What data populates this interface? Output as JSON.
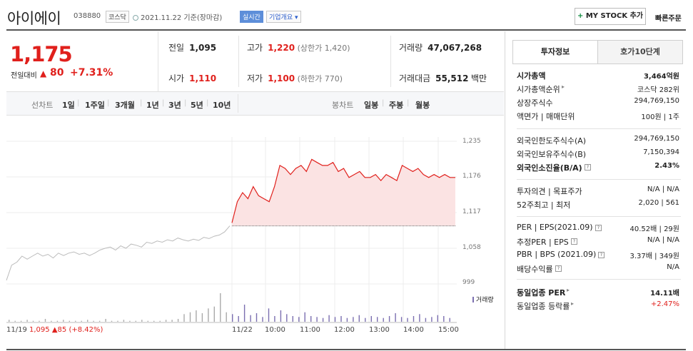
{
  "header": {
    "name": "아이에이",
    "code": "038880",
    "market": "코스닥",
    "base_date": "2021.11.22 기준(장마감)",
    "realtime": "실시간",
    "company_overview": "기업개요",
    "mystock_plus": "+",
    "mystock": "MY STOCK 추가",
    "quick_order": "빠른주문"
  },
  "price": {
    "current": "1,175",
    "change_label": "전일대비",
    "change_arrow": "▲",
    "change": "80",
    "change_pct": "+7.31%"
  },
  "quote": {
    "prev_close": {
      "label": "전일",
      "value": "1,095"
    },
    "high": {
      "label": "고가",
      "value": "1,220",
      "sub": "(상한가 1,420)"
    },
    "volume": {
      "label": "거래량",
      "value": "47,067,268"
    },
    "open": {
      "label": "시가",
      "value": "1,110"
    },
    "low": {
      "label": "저가",
      "value": "1,100",
      "sub": "(하한가 770)"
    },
    "amount": {
      "label": "거래대금",
      "value": "55,512",
      "unit": "백만"
    }
  },
  "period_tabs": {
    "line_label": "선차트",
    "items": [
      "1일",
      "1주일",
      "3개월",
      "1년",
      "3년",
      "5년",
      "10년"
    ],
    "candle_label": "봉차트",
    "candle_items": [
      "일봉",
      "주봉",
      "월봉"
    ]
  },
  "chart": {
    "prev_day_label": "11/19",
    "prev_day_price": "1,095",
    "prev_day_arrow": "▲",
    "prev_day_change": "85",
    "prev_day_pct": "(+8.42%)",
    "volume_legend": "거래량"
  },
  "chart_data": {
    "type": "line",
    "y_ticks": [
      "1,235",
      "1,176",
      "1,117",
      "1,058",
      "999"
    ],
    "ylim": [
      999,
      1235
    ],
    "x_ticks": [
      "11/22",
      "10:00",
      "11:00",
      "12:00",
      "13:00",
      "14:00",
      "15:00"
    ],
    "baseline": 1095,
    "series": [
      {
        "x": [
          "09:00",
          "09:05",
          "09:10",
          "09:15",
          "09:20",
          "09:25",
          "09:30",
          "09:40",
          "09:50",
          "10:00",
          "10:10",
          "10:20",
          "10:30",
          "10:40",
          "10:50",
          "11:00",
          "11:10",
          "11:20",
          "11:30",
          "11:40",
          "11:50",
          "12:00",
          "12:10",
          "12:20",
          "12:30",
          "12:40",
          "12:50",
          "13:00",
          "13:10",
          "13:20",
          "13:30",
          "13:40",
          "13:50",
          "14:00",
          "14:10",
          "14:20",
          "14:30",
          "14:40",
          "14:50",
          "15:00",
          "15:10",
          "15:20",
          "15:30"
        ],
        "values": [
          1100,
          1135,
          1150,
          1140,
          1160,
          1145,
          1140,
          1135,
          1160,
          1195,
          1190,
          1180,
          1190,
          1195,
          1185,
          1205,
          1200,
          1195,
          1195,
          1200,
          1185,
          1190,
          1175,
          1180,
          1185,
          1175,
          1175,
          1180,
          1170,
          1180,
          1175,
          1170,
          1195,
          1190,
          1185,
          1190,
          1180,
          1175,
          1180,
          1175,
          1180,
          1175,
          1175
        ]
      }
    ],
    "prev_day_values": [
      1005,
      1030,
      1035,
      1045,
      1040,
      1045,
      1050,
      1045,
      1048,
      1042,
      1050,
      1046,
      1050,
      1052,
      1048,
      1050,
      1046,
      1050,
      1055,
      1058,
      1060,
      1055,
      1062,
      1058,
      1065,
      1063,
      1060,
      1068,
      1066,
      1070,
      1068,
      1072,
      1070,
      1075,
      1072,
      1070,
      1073,
      1071,
      1076,
      1074,
      1078,
      1080,
      1085,
      1095
    ],
    "volume": [
      2,
      1,
      1,
      2,
      1,
      1,
      3,
      1,
      1,
      2,
      1,
      1,
      1,
      2,
      1,
      1,
      3,
      1,
      1,
      2,
      1,
      1,
      2,
      1,
      1,
      1,
      2,
      2,
      3,
      8,
      10,
      12,
      9,
      14,
      16,
      30,
      10,
      8,
      6,
      18,
      7,
      9,
      5,
      14,
      6,
      12,
      8,
      6,
      5,
      10,
      6,
      5,
      4,
      7,
      5,
      6,
      4,
      5,
      7,
      4,
      6,
      5,
      4,
      6,
      9,
      5,
      4,
      6,
      8,
      4,
      5,
      7,
      6,
      4
    ]
  },
  "right_panel": {
    "tab_invest": "투자정보",
    "tab_orderbook": "호가10단계",
    "rows1": [
      {
        "k": "시가총액",
        "v": "3,464억원"
      },
      {
        "k": "시가총액순위",
        "v": "코스닥 282위"
      },
      {
        "k": "상장주식수",
        "v": "294,769,150"
      },
      {
        "k": "액면가 | 매매단위",
        "v": "100원 | 1주"
      }
    ],
    "rows2": [
      {
        "k": "외국인한도주식수(A)",
        "v": "294,769,150"
      },
      {
        "k": "외국인보유주식수(B)",
        "v": "7,150,394"
      },
      {
        "k": "외국인소진율(B/A)",
        "v": "2.43%"
      }
    ],
    "rows3": [
      {
        "k": "투자의견 | 목표주가",
        "v": "N/A | N/A"
      },
      {
        "k": "52주최고 | 최저",
        "v": "2,020 | 561"
      }
    ],
    "rows4": [
      {
        "k": "PER | EPS(2021.09)",
        "v": "40.52배 | 29원"
      },
      {
        "k": "추정PER | EPS",
        "v": "N/A | N/A"
      },
      {
        "k": "PBR | BPS (2021.09)",
        "v": "3.37배 | 349원"
      },
      {
        "k": "배당수익률",
        "v": "N/A"
      }
    ],
    "rows5": [
      {
        "k": "동일업종 PER",
        "v": "14.11배"
      },
      {
        "k": "동일업종 등락률",
        "v": "+2.47%"
      }
    ]
  }
}
